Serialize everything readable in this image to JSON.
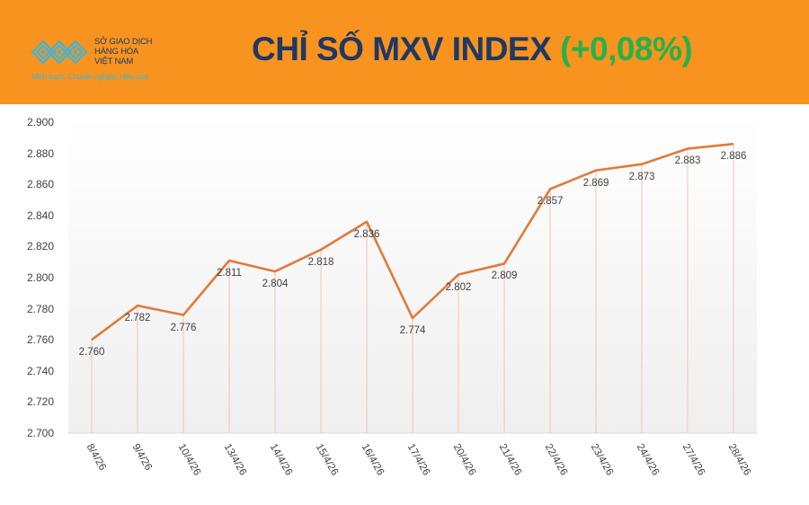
{
  "header": {
    "logo": {
      "name_lines": [
        "SỞ GIAO DỊCH",
        "HÀNG HÓA",
        "VIỆT NAM"
      ],
      "slogan": "Minh bạch. Chuyên nghiệp. Hiệu quả",
      "icon": "mxv-logo-icon"
    },
    "title_main": "CHỈ SỐ MXV INDEX",
    "title_change": "(+0,08%)",
    "colors": {
      "background": "#f7931e",
      "title": "#1f3864",
      "change": "#27b14a",
      "logo_accent": "#3fb6d9"
    }
  },
  "chart_data": {
    "type": "line",
    "title": "CHỈ SỐ MXV INDEX (+0,08%)",
    "xlabel": "",
    "ylabel": "",
    "categories": [
      "8/4/26",
      "9/4/26",
      "10/4/26",
      "13/4/26",
      "14/4/26",
      "15/4/26",
      "16/4/26",
      "17/4/26",
      "20/4/26",
      "21/4/26",
      "22/4/26",
      "23/4/26",
      "24/4/26",
      "27/4/26",
      "28/4/26"
    ],
    "values": [
      2760,
      2782,
      2776,
      2811,
      2804,
      2818,
      2836,
      2774,
      2802,
      2809,
      2857,
      2869,
      2873,
      2883,
      2886
    ],
    "value_labels": [
      "2.760",
      "2.782",
      "2.776",
      "2.811",
      "2.804",
      "2.818",
      "2.836",
      "2.774",
      "2.802",
      "2.809",
      "2.857",
      "2.869",
      "2.873",
      "2.883",
      "2.886"
    ],
    "ylim": [
      2700,
      2900
    ],
    "yticks": [
      2700,
      2720,
      2740,
      2760,
      2780,
      2800,
      2820,
      2840,
      2860,
      2880,
      2900
    ],
    "ytick_labels": [
      "2.700",
      "2.720",
      "2.740",
      "2.760",
      "2.780",
      "2.800",
      "2.820",
      "2.840",
      "2.860",
      "2.880",
      "2.900"
    ],
    "grid": false,
    "drop_lines": true,
    "legend": "none",
    "line_color": "#e07b39"
  }
}
